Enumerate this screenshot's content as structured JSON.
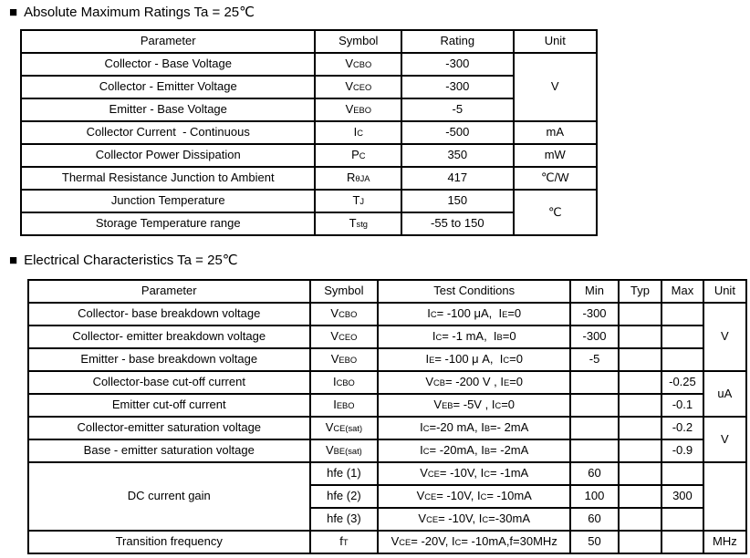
{
  "page": {
    "background": "#ffffff",
    "text_color": "#000000",
    "border_color": "#000000"
  },
  "sections": [
    {
      "bullet": "■",
      "title": "Absolute Maximum Ratings Ta = 25℃",
      "table": {
        "header": [
          "Parameter",
          "Symbol",
          "Rating",
          "Unit"
        ],
        "rows": [
          [
            {
              "t": "Collector - Base Voltage",
              "al": "left"
            },
            {
              "t": "V~CBO~"
            },
            {
              "t": "-300"
            },
            {
              "t": "V",
              "rs": 3
            }
          ],
          [
            {
              "t": "Collector - Emitter Voltage",
              "al": "left"
            },
            {
              "t": "V~CEO~"
            },
            {
              "t": "-300"
            }
          ],
          [
            {
              "t": "Emitter - Base Voltage",
              "al": "left"
            },
            {
              "t": "V~EBO~"
            },
            {
              "t": "-5"
            }
          ],
          [
            {
              "t": "Collector Current  - Continuous",
              "al": "left"
            },
            {
              "t": "I~C~"
            },
            {
              "t": "-500"
            },
            {
              "t": "mA"
            }
          ],
          [
            {
              "t": "Collector Power Dissipation",
              "al": "left"
            },
            {
              "t": "P~C~"
            },
            {
              "t": "350"
            },
            {
              "t": "mW"
            }
          ],
          [
            {
              "t": "Thermal Resistance Junction to Ambient",
              "al": "left"
            },
            {
              "t": "R~θJA~"
            },
            {
              "t": "417"
            },
            {
              "t": "℃/W"
            }
          ],
          [
            {
              "t": "Junction Temperature",
              "al": "left"
            },
            {
              "t": "T~J~"
            },
            {
              "t": "150"
            },
            {
              "t": "℃",
              "rs": 2
            }
          ],
          [
            {
              "t": "Storage Temperature range",
              "al": "left"
            },
            {
              "t": "T~stg~"
            },
            {
              "t": "-55 to 150"
            }
          ]
        ]
      }
    },
    {
      "bullet": "■",
      "title": "Electrical Characteristics Ta = 25℃",
      "table": {
        "header": [
          "Parameter",
          "Symbol",
          "Test Conditions",
          "Min",
          "Typ",
          "Max",
          "Unit"
        ],
        "rows": [
          [
            {
              "t": "Collector- base breakdown voltage",
              "al": "left"
            },
            {
              "t": "V~CBO~"
            },
            {
              "t": "I~C~= -100 μA,  I~E~=0",
              "al": "left"
            },
            {
              "t": "-300"
            },
            {
              "t": ""
            },
            {
              "t": ""
            },
            {
              "t": "V",
              "rs": 3
            }
          ],
          [
            {
              "t": "Collector- emitter breakdown voltage",
              "al": "left"
            },
            {
              "t": "V~CEO~"
            },
            {
              "t": "I~C~= -1 mA,  I~B~=0",
              "al": "left"
            },
            {
              "t": "-300"
            },
            {
              "t": ""
            },
            {
              "t": ""
            }
          ],
          [
            {
              "t": "Emitter - base breakdown voltage",
              "al": "left"
            },
            {
              "t": "V~EBO~"
            },
            {
              "t": "I~E~= -100 μ A,  I~C~=0",
              "al": "left"
            },
            {
              "t": "-5"
            },
            {
              "t": ""
            },
            {
              "t": ""
            }
          ],
          [
            {
              "t": "Collector-base cut-off current",
              "al": "left"
            },
            {
              "t": "I~CBO~"
            },
            {
              "t": "V~CB~= -200 V , I~E~=0",
              "al": "left"
            },
            {
              "t": ""
            },
            {
              "t": ""
            },
            {
              "t": "-0.25"
            },
            {
              "t": "uA",
              "rs": 2
            }
          ],
          [
            {
              "t": "Emitter cut-off current",
              "al": "left"
            },
            {
              "t": "I~EBO~"
            },
            {
              "t": "V~EB~= -5V , I~C~=0",
              "al": "left"
            },
            {
              "t": ""
            },
            {
              "t": ""
            },
            {
              "t": "-0.1"
            }
          ],
          [
            {
              "t": "Collector-emitter saturation voltage",
              "al": "left"
            },
            {
              "t": "V~CE(sat)~"
            },
            {
              "t": "I~C~=-20 mA, I~B~=- 2mA",
              "al": "left"
            },
            {
              "t": ""
            },
            {
              "t": ""
            },
            {
              "t": "-0.2"
            },
            {
              "t": "V",
              "rs": 2
            }
          ],
          [
            {
              "t": "Base - emitter saturation voltage",
              "al": "left"
            },
            {
              "t": "V~BE(sat)~"
            },
            {
              "t": "I~C~= -20mA, I~B~= -2mA",
              "al": "left"
            },
            {
              "t": ""
            },
            {
              "t": ""
            },
            {
              "t": "-0.9"
            }
          ],
          [
            {
              "t": "DC current gain",
              "al": "left",
              "rs": 3
            },
            {
              "t": "hfe (1)",
              "al": "left"
            },
            {
              "t": "V~CE~= -10V, I~C~= -1mA",
              "al": "left"
            },
            {
              "t": "60"
            },
            {
              "t": ""
            },
            {
              "t": ""
            },
            {
              "t": "",
              "rs": 3
            }
          ],
          [
            {
              "t": "hfe (2)",
              "al": "left"
            },
            {
              "t": "V~CE~= -10V, I~C~= -10mA",
              "al": "left"
            },
            {
              "t": "100"
            },
            {
              "t": ""
            },
            {
              "t": "300"
            }
          ],
          [
            {
              "t": "hfe (3)",
              "al": "left"
            },
            {
              "t": "V~CE~= -10V, I~C~=-30mA",
              "al": "left"
            },
            {
              "t": "60"
            },
            {
              "t": ""
            },
            {
              "t": ""
            }
          ],
          [
            {
              "t": "Transition frequency",
              "al": "left"
            },
            {
              "t": "f~T~"
            },
            {
              "t": "V~CE~= -20V, I~C~= -10mA,f=30MHz",
              "al": "left"
            },
            {
              "t": "50"
            },
            {
              "t": ""
            },
            {
              "t": ""
            },
            {
              "t": "MHz"
            }
          ]
        ]
      }
    }
  ]
}
